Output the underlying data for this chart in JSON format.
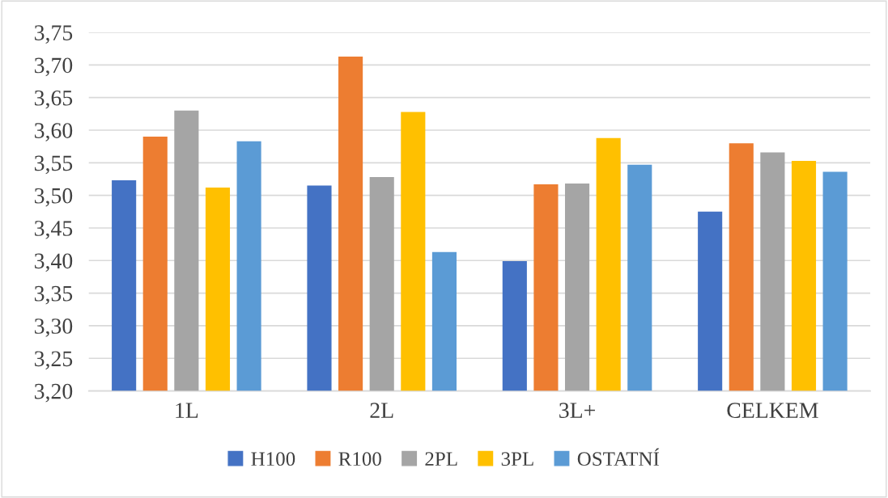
{
  "chart_data": {
    "type": "bar",
    "categories": [
      "1L",
      "2L",
      "3L+",
      "CELKEM"
    ],
    "series": [
      {
        "name": "H100",
        "color": "#4472c4",
        "values": [
          3.523,
          3.515,
          3.399,
          3.475
        ]
      },
      {
        "name": "R100",
        "color": "#ed7d31",
        "values": [
          3.59,
          3.713,
          3.517,
          3.58
        ]
      },
      {
        "name": "2PL",
        "color": "#a5a5a5",
        "values": [
          3.63,
          3.528,
          3.518,
          3.566
        ]
      },
      {
        "name": "3PL",
        "color": "#ffc000",
        "values": [
          3.512,
          3.628,
          3.588,
          3.553
        ]
      },
      {
        "name": "OSTATNÍ",
        "color": "#5b9bd5",
        "values": [
          3.583,
          3.413,
          3.547,
          3.536
        ]
      }
    ],
    "ylim": [
      3.2,
      3.75
    ],
    "yticks": [
      {
        "value": 3.2,
        "label": "3,20"
      },
      {
        "value": 3.25,
        "label": "3,25"
      },
      {
        "value": 3.3,
        "label": "3,30"
      },
      {
        "value": 3.35,
        "label": "3,35"
      },
      {
        "value": 3.4,
        "label": "3,40"
      },
      {
        "value": 3.45,
        "label": "3,45"
      },
      {
        "value": 3.5,
        "label": "3,50"
      },
      {
        "value": 3.55,
        "label": "3,55"
      },
      {
        "value": 3.6,
        "label": "3,60"
      },
      {
        "value": 3.65,
        "label": "3,65"
      },
      {
        "value": 3.7,
        "label": "3,70"
      },
      {
        "value": 3.75,
        "label": "3,75"
      }
    ],
    "grid": "y",
    "legend": "bottom"
  }
}
